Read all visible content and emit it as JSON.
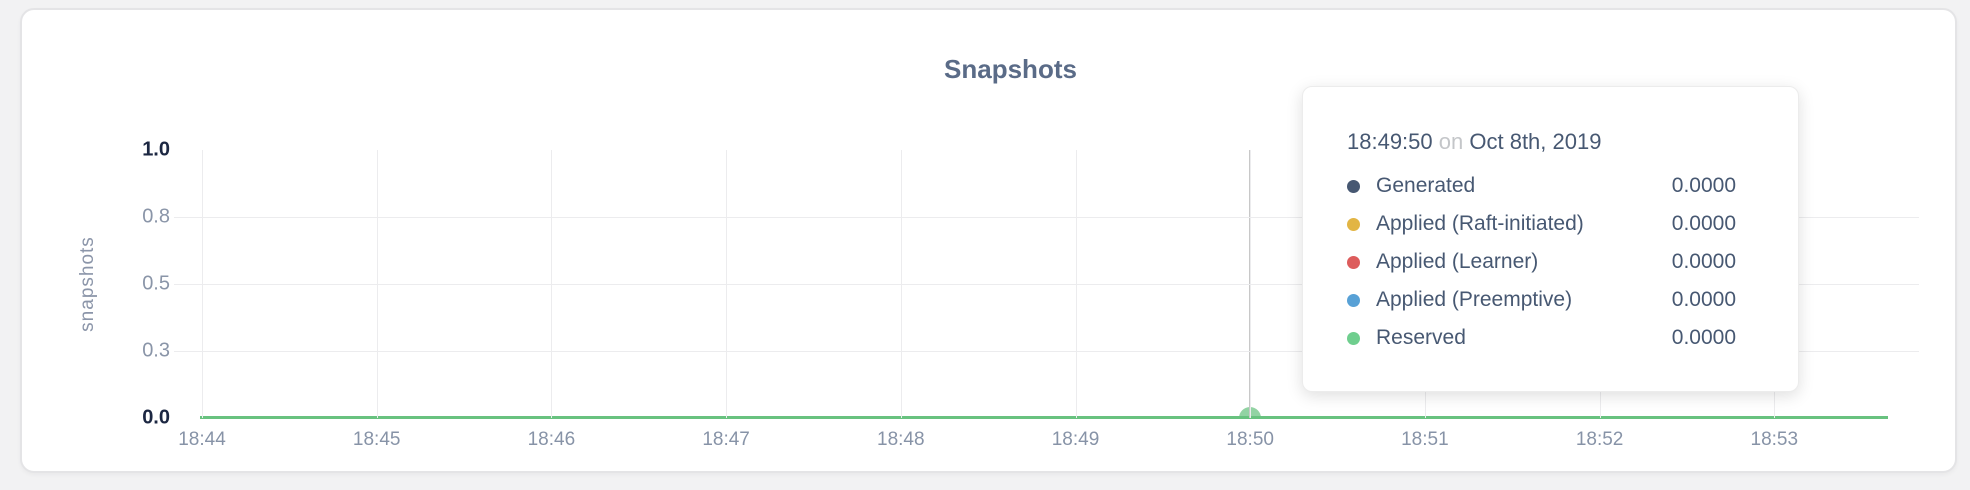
{
  "chart_data": {
    "type": "line",
    "title": "Snapshots",
    "xlabel": "",
    "ylabel": "snapshots",
    "ylim": [
      0,
      1
    ],
    "grid": true,
    "x_ticks": [
      "18:44",
      "18:45",
      "18:46",
      "18:47",
      "18:48",
      "18:49",
      "18:50",
      "18:51",
      "18:52",
      "18:53"
    ],
    "y_ticks": [
      {
        "label": "1.0",
        "strong": true
      },
      {
        "label": "0.8",
        "strong": false
      },
      {
        "label": "0.5",
        "strong": false
      },
      {
        "label": "0.3",
        "strong": false
      },
      {
        "label": "0.0",
        "strong": true
      }
    ],
    "line_color": "#68c27f",
    "crosshair_x_label": "18:50",
    "series": [
      {
        "name": "Generated",
        "color": "#475872",
        "values": [
          0,
          0,
          0,
          0,
          0,
          0,
          0,
          0,
          0,
          0
        ]
      },
      {
        "name": "Applied (Raft-initiated)",
        "color": "#e2b544",
        "values": [
          0,
          0,
          0,
          0,
          0,
          0,
          0,
          0,
          0,
          0
        ]
      },
      {
        "name": "Applied (Learner)",
        "color": "#dd5c5c",
        "values": [
          0,
          0,
          0,
          0,
          0,
          0,
          0,
          0,
          0,
          0
        ]
      },
      {
        "name": "Applied (Preemptive)",
        "color": "#58a1d6",
        "values": [
          0,
          0,
          0,
          0,
          0,
          0,
          0,
          0,
          0,
          0
        ]
      },
      {
        "name": "Reserved",
        "color": "#6fce8e",
        "values": [
          0,
          0,
          0,
          0,
          0,
          0,
          0,
          0,
          0,
          0
        ]
      }
    ]
  },
  "tooltip": {
    "time": "18:49:50",
    "connector": "on",
    "date": "Oct 8th, 2019",
    "rows": [
      {
        "label": "Generated",
        "value": "0.0000",
        "color": "#475872"
      },
      {
        "label": "Applied (Raft-initiated)",
        "value": "0.0000",
        "color": "#e2b544"
      },
      {
        "label": "Applied (Learner)",
        "value": "0.0000",
        "color": "#dd5c5c"
      },
      {
        "label": "Applied (Preemptive)",
        "value": "0.0000",
        "color": "#58a1d6"
      },
      {
        "label": "Reserved",
        "value": "0.0000",
        "color": "#6fce8e"
      }
    ]
  }
}
